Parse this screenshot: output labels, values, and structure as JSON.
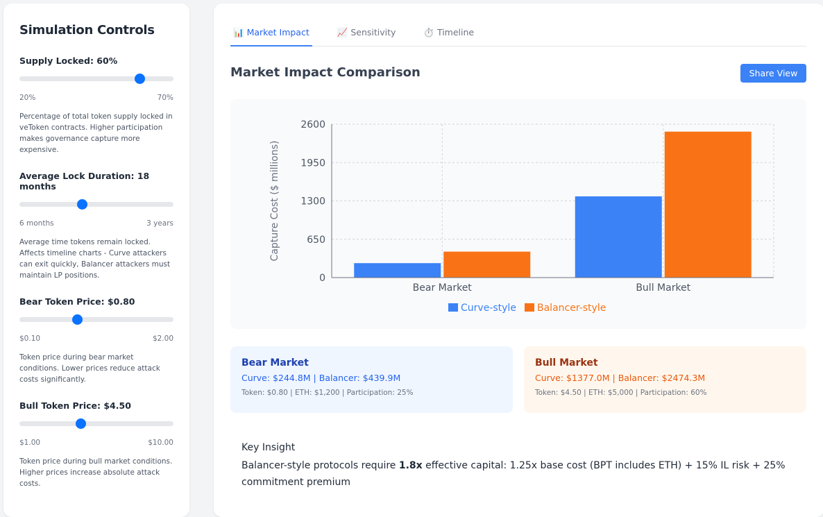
{
  "sidebar": {
    "title": "Simulation Controls",
    "controls": [
      {
        "label": "Supply Locked: 60%",
        "min_label": "20%",
        "max_label": "70%",
        "fraction": 0.8,
        "description": "Percentage of total token supply locked in veToken contracts. Higher participation makes governance capture more expensive."
      },
      {
        "label": "Average Lock Duration: 18 months",
        "min_label": "6 months",
        "max_label": "3 years",
        "fraction": 0.4,
        "description": "Average time tokens remain locked. Affects timeline charts - Curve attackers can exit quickly, Balancer attackers must maintain LP positions."
      },
      {
        "label": "Bear Token Price: $0.80",
        "min_label": "$0.10",
        "max_label": "$2.00",
        "fraction": 0.368,
        "description": "Token price during bear market conditions. Lower prices reduce attack costs significantly."
      },
      {
        "label": "Bull Token Price: $4.50",
        "min_label": "$1.00",
        "max_label": "$10.00",
        "fraction": 0.389,
        "description": "Token price during bull market conditions. Higher prices increase absolute attack costs."
      }
    ]
  },
  "tabs": [
    {
      "icon": "📊",
      "label": "Market Impact",
      "active": true
    },
    {
      "icon": "📈",
      "label": "Sensitivity"
    },
    {
      "icon": "⏱️",
      "label": "Timeline"
    }
  ],
  "header": {
    "title": "Market Impact Comparison",
    "share_label": "Share View"
  },
  "chart_data": {
    "type": "bar",
    "categories": [
      "Bear Market",
      "Bull Market"
    ],
    "series": [
      {
        "name": "Curve-style",
        "color": "#3b82f6",
        "values": [
          244.8,
          1377.0
        ]
      },
      {
        "name": "Balancer-style",
        "color": "#f97316",
        "values": [
          439.9,
          2474.3
        ]
      }
    ],
    "ylabel": "Capture Cost ($ millions)",
    "ylim": [
      0,
      2600
    ],
    "yticks": [
      0,
      650,
      1300,
      1950,
      2600
    ],
    "grid": true,
    "legend": "bottom"
  },
  "cards": {
    "bear": {
      "title": "Bear Market",
      "values": "Curve: $244.8M | Balancer: $439.9M",
      "meta": "Token: $0.80 | ETH: $1,200 | Participation: 25%"
    },
    "bull": {
      "title": "Bull Market",
      "values": "Curve: $1377.0M | Balancer: $2474.3M",
      "meta": "Token: $4.50 | ETH: $5,000 | Participation: 60%"
    }
  },
  "insight": {
    "title": "Key Insight",
    "pre": "Balancer-style protocols require ",
    "bold": "1.8x",
    "post": " effective capital: 1.25x base cost (BPT includes ETH) + 15% IL risk + 25% commitment premium"
  }
}
